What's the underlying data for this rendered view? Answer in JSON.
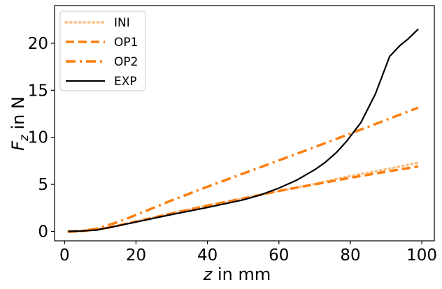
{
  "chart_data": {
    "type": "line",
    "title": "",
    "xlabel": "z in mm",
    "ylabel": "F_z in N",
    "xlim": [
      -2.8,
      103.5
    ],
    "ylim": [
      -1.0,
      24.0
    ],
    "xticks": [
      0,
      20,
      40,
      60,
      80,
      100
    ],
    "yticks": [
      0,
      5,
      10,
      15,
      20
    ],
    "xtick_labels": [
      "0",
      "20",
      "40",
      "60",
      "80",
      "100"
    ],
    "ytick_labels": [
      "0",
      "5",
      "10",
      "15",
      "20"
    ],
    "grid": false,
    "legend_position": "top-left",
    "series": [
      {
        "name": "INI",
        "style": "dotted",
        "color": "#fdbf86",
        "x": [
          1,
          5,
          9,
          13,
          20,
          30,
          40,
          50,
          60,
          70,
          80,
          90,
          99
        ],
        "y": [
          0.0,
          0.05,
          0.2,
          0.45,
          1.05,
          1.95,
          2.75,
          3.5,
          4.3,
          5.05,
          5.9,
          6.6,
          7.3
        ]
      },
      {
        "name": "OP1",
        "style": "dashed",
        "color": "#fd7f0e",
        "x": [
          1,
          5,
          9,
          13,
          20,
          30,
          40,
          50,
          60,
          70,
          80,
          90,
          99
        ],
        "y": [
          0.0,
          0.05,
          0.2,
          0.45,
          1.05,
          1.9,
          2.75,
          3.5,
          4.3,
          5.0,
          5.7,
          6.35,
          6.9
        ]
      },
      {
        "name": "OP2",
        "style": "dashdot",
        "color": "#fd7f0e",
        "x": [
          1,
          5,
          9,
          15,
          20,
          30,
          40,
          50,
          60,
          70,
          80,
          90,
          99
        ],
        "y": [
          -0.05,
          0.05,
          0.3,
          1.0,
          1.75,
          3.3,
          4.75,
          6.15,
          7.55,
          8.95,
          10.4,
          11.85,
          13.15
        ]
      },
      {
        "name": "EXP",
        "style": "solid",
        "color": "#000000",
        "x": [
          1,
          5,
          9,
          13,
          20,
          30,
          40,
          50,
          55,
          60,
          65,
          70,
          73,
          76,
          79,
          81,
          83,
          85,
          87,
          89,
          91,
          94,
          96,
          99
        ],
        "y": [
          0.0,
          0.05,
          0.15,
          0.45,
          1.0,
          1.8,
          2.55,
          3.35,
          3.9,
          4.6,
          5.45,
          6.55,
          7.35,
          8.35,
          9.6,
          10.6,
          11.6,
          13.1,
          14.6,
          16.6,
          18.6,
          19.8,
          20.4,
          21.5
        ]
      }
    ]
  }
}
